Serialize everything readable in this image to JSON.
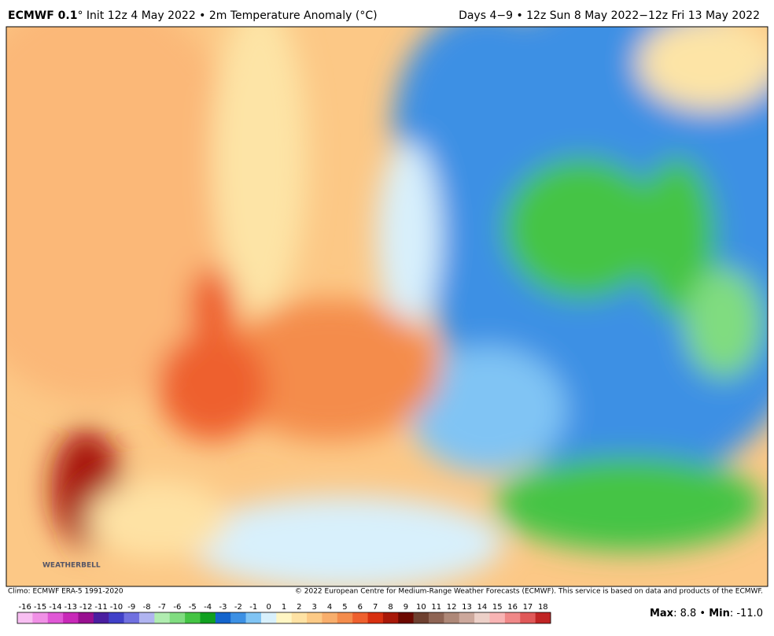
{
  "header": {
    "title": "ECMWF 0.1",
    "subtitle": "° Init 12z 4 May 2022 • 2m Temperature Anomaly (°C)",
    "period": "Days 4−9 • 12z Sun 8 May 2022−12z Fri 13 May 2022"
  },
  "logo": "WEATHERBELL",
  "footer": {
    "climo": "Climo: ECMWF ERA-5 1991-2020",
    "copyright": "© 2022 European Centre for Medium-Range Weather Forecasts (ECMWF). This service is based on data and products of the ECMWF."
  },
  "colorbar": {
    "ticks": [
      -16,
      -15,
      -14,
      -13,
      -12,
      -11,
      -10,
      -9,
      -8,
      -7,
      -6,
      -5,
      -4,
      -3,
      -2,
      -1,
      0,
      1,
      2,
      3,
      4,
      5,
      6,
      7,
      8,
      9,
      10,
      11,
      12,
      13,
      14,
      15,
      16,
      17,
      18
    ],
    "colors": [
      "#f8bff2",
      "#f090e6",
      "#e058d6",
      "#c828b8",
      "#981090",
      "#4a1ea0",
      "#4040c8",
      "#7070e0",
      "#b0b4f0",
      "#b0ecb0",
      "#80dc80",
      "#44c444",
      "#10a020",
      "#1464cc",
      "#3c90e4",
      "#80c4f4",
      "#d8f0fc",
      "#fff6c4",
      "#fee2a4",
      "#fcca86",
      "#f8ae6c",
      "#f48c4c",
      "#ee602e",
      "#d83010",
      "#a81808",
      "#6c0800",
      "#6e4030",
      "#8e6454",
      "#ae8878",
      "#cca89c",
      "#ecd0c8",
      "#f8b4b4",
      "#f08888",
      "#e05858",
      "#c02424"
    ]
  },
  "stats": [
    "Max",
    ": 8.8 • ",
    "Min",
    ": -11.0"
  ]
}
